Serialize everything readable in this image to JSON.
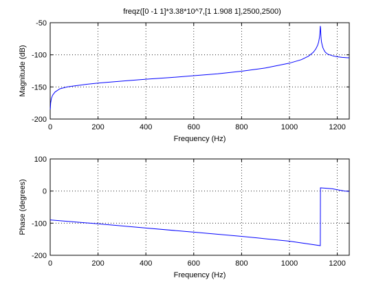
{
  "figure": {
    "title": "freqz([0 -1  1]*3.38*10^7,[1 1.908 1],2500,2500)"
  },
  "chart_data": [
    {
      "type": "line",
      "title": "freqz([0 -1  1]*3.38*10^7,[1 1.908 1],2500,2500)",
      "xlabel": "Frequency (Hz)",
      "ylabel": "Magnitude (dB)",
      "xlim": [
        0,
        1250
      ],
      "ylim": [
        -200,
        -50
      ],
      "xticks": [
        "0",
        "200",
        "400",
        "600",
        "800",
        "1000",
        "1200"
      ],
      "yticks": [
        "-200",
        "-150",
        "-100",
        "-50"
      ],
      "grid": true,
      "series": [
        {
          "color": "#0000ff",
          "x": [
            0.5,
            2,
            5,
            10,
            20,
            40,
            70,
            100,
            150,
            200,
            300,
            400,
            500,
            600,
            700,
            800,
            900,
            1000,
            1050,
            1080,
            1100,
            1110,
            1118,
            1122,
            1125,
            1127,
            1128,
            1129,
            1130,
            1131,
            1132,
            1134,
            1137,
            1140,
            1145,
            1150,
            1160,
            1180,
            1200,
            1220,
            1240,
            1250
          ],
          "y": [
            -185,
            -175,
            -168,
            -163,
            -158,
            -153,
            -150,
            -148.5,
            -146,
            -144,
            -141,
            -138,
            -135.5,
            -132.5,
            -129.5,
            -125.5,
            -120.5,
            -113,
            -107.5,
            -102,
            -96,
            -91,
            -85,
            -80,
            -74,
            -68,
            -62,
            -55,
            -58,
            -66,
            -73,
            -80,
            -85,
            -89,
            -93,
            -96,
            -99,
            -101.5,
            -103,
            -104,
            -104.5,
            -104.7
          ]
        }
      ]
    },
    {
      "type": "line",
      "xlabel": "Frequency (Hz)",
      "ylabel": "Phase (degrees)",
      "xlim": [
        0,
        1250
      ],
      "ylim": [
        -200,
        100
      ],
      "xticks": [
        "0",
        "200",
        "400",
        "600",
        "800",
        "1000",
        "1200"
      ],
      "yticks": [
        "-200",
        "-100",
        "0",
        "100"
      ],
      "grid": true,
      "series": [
        {
          "color": "#0000ff",
          "x": [
            0,
            200,
            400,
            600,
            800,
            1000,
            1129,
            1129.5,
            1130,
            1150,
            1180,
            1200,
            1230,
            1250
          ],
          "y": [
            -90,
            -102,
            -115,
            -128,
            -141,
            -156,
            -170,
            10,
            10,
            9,
            7,
            4,
            0,
            -1
          ]
        }
      ]
    }
  ]
}
